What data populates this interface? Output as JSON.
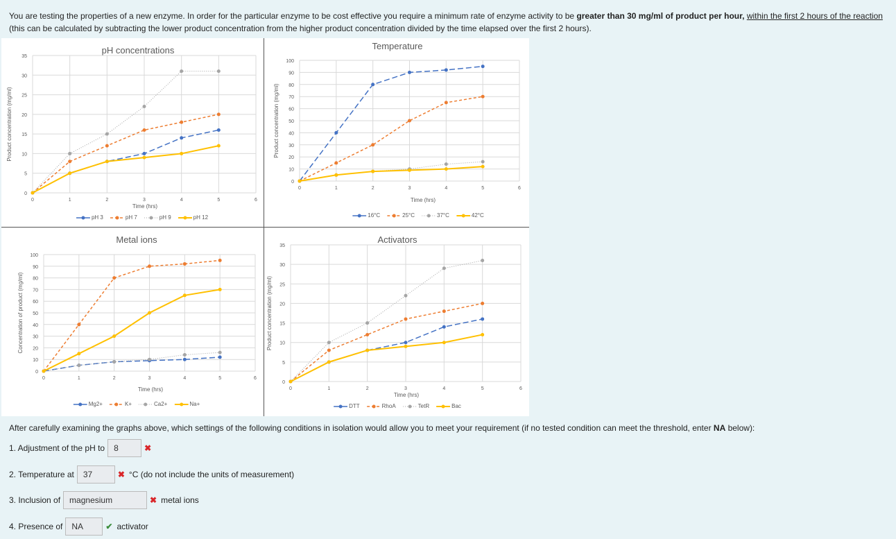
{
  "intro": {
    "part1": "You are testing the properties of a new enzyme.  In order for the particular enzyme to be cost effective you require a minimum rate of enzyme activity to be ",
    "bold": "greater than 30 mg/ml of product per hour,",
    "underlined": "within the first 2 hours of the reaction",
    "part2": "(this can be calculated by subtracting the lower product concentration from the higher product concentration divided by the time elapsed over the first 2 hours)."
  },
  "colors": {
    "blue": "#4472c4",
    "orange": "#ed7d31",
    "gray": "#a5a5a5",
    "yellow": "#ffc000"
  },
  "chart_data": [
    {
      "id": "ph",
      "type": "line",
      "title": "pH concentrations",
      "xlabel": "Time (hrs)",
      "ylabel": "Product concentration (mg/ml)",
      "x": [
        0,
        1,
        2,
        3,
        4,
        5
      ],
      "xlim": [
        0,
        6
      ],
      "ylim": [
        0,
        35
      ],
      "xticks": [
        0,
        1,
        2,
        3,
        4,
        5,
        6
      ],
      "yticks": [
        0,
        5,
        10,
        15,
        20,
        25,
        30,
        35
      ],
      "grid": true,
      "legend": "bottom",
      "series": [
        {
          "name": "pH 3",
          "values": [
            0,
            5,
            8,
            10,
            14,
            16
          ]
        },
        {
          "name": "pH 7",
          "values": [
            0,
            8,
            12,
            16,
            18,
            20
          ]
        },
        {
          "name": "pH 9",
          "values": [
            0,
            10,
            15,
            22,
            31,
            31
          ]
        },
        {
          "name": "pH 12",
          "values": [
            0,
            5,
            8,
            9,
            10,
            12
          ]
        }
      ]
    },
    {
      "id": "temp",
      "type": "line",
      "title": "Temperature",
      "xlabel": "Time (hrs)",
      "ylabel": "Product concentration (mg/ml)",
      "x": [
        0,
        1,
        2,
        3,
        4,
        5
      ],
      "xlim": [
        0,
        6
      ],
      "ylim": [
        0,
        100
      ],
      "xticks": [
        0,
        1,
        2,
        3,
        4,
        5,
        6
      ],
      "yticks": [
        0,
        10,
        20,
        30,
        40,
        50,
        60,
        70,
        80,
        90,
        100
      ],
      "grid": true,
      "legend": "bottom",
      "series": [
        {
          "name": "16°C",
          "values": [
            0,
            40,
            80,
            90,
            92,
            95
          ]
        },
        {
          "name": "25°C",
          "values": [
            0,
            15,
            30,
            50,
            65,
            70
          ]
        },
        {
          "name": "37°C",
          "values": [
            0,
            5,
            8,
            10,
            14,
            16
          ]
        },
        {
          "name": "42°C",
          "values": [
            0,
            5,
            8,
            9,
            10,
            12
          ]
        }
      ]
    },
    {
      "id": "metal",
      "type": "line",
      "title": "Metal ions",
      "xlabel": "Time (hrs)",
      "ylabel": "Concentration of product (mg/ml)",
      "x": [
        0,
        1,
        2,
        3,
        4,
        5
      ],
      "xlim": [
        0,
        6
      ],
      "ylim": [
        0,
        100
      ],
      "xticks": [
        0,
        1,
        2,
        3,
        4,
        5,
        6
      ],
      "yticks": [
        0,
        10,
        20,
        30,
        40,
        50,
        60,
        70,
        80,
        90,
        100
      ],
      "grid": true,
      "legend": "bottom",
      "series": [
        {
          "name": "Mg2+",
          "values": [
            0,
            5,
            8,
            9,
            10,
            12
          ]
        },
        {
          "name": "K+",
          "values": [
            0,
            40,
            80,
            90,
            92,
            95
          ]
        },
        {
          "name": "Ca2+",
          "values": [
            0,
            5,
            8,
            10,
            14,
            16
          ]
        },
        {
          "name": "Na+",
          "values": [
            0,
            15,
            30,
            50,
            65,
            70
          ]
        }
      ]
    },
    {
      "id": "act",
      "type": "line",
      "title": "Activators",
      "xlabel": "Time (hrs)",
      "ylabel": "Product concentration (mg/ml)",
      "x": [
        0,
        1,
        2,
        3,
        4,
        5
      ],
      "xlim": [
        0,
        6
      ],
      "ylim": [
        0,
        35
      ],
      "xticks": [
        0,
        1,
        2,
        3,
        4,
        5,
        6
      ],
      "yticks": [
        0,
        5,
        10,
        15,
        20,
        25,
        30,
        35
      ],
      "grid": true,
      "legend": "bottom",
      "series": [
        {
          "name": "DTT",
          "values": [
            0,
            5,
            8,
            10,
            14,
            16
          ]
        },
        {
          "name": "RhoA",
          "values": [
            0,
            8,
            12,
            16,
            18,
            20
          ]
        },
        {
          "name": "TetR",
          "values": [
            0,
            10,
            15,
            22,
            29,
            31
          ]
        },
        {
          "name": "Bac",
          "values": [
            0,
            5,
            8,
            9,
            10,
            12
          ]
        }
      ]
    }
  ],
  "question": {
    "prompt_start": "After carefully examining the graphs above, which settings of the following conditions in isolation would allow you to meet your requirement (if no tested condition can meet the threshold, enter ",
    "prompt_bold": "NA",
    "prompt_end": " below):",
    "items": [
      {
        "label": "1. Adjustment of the pH to",
        "value": "8",
        "result": "✖",
        "suffix": ""
      },
      {
        "label": "2. Temperature at",
        "value": "37",
        "result": "✖",
        "suffix": "°C (do not include the units of measurement)"
      },
      {
        "label": "3. Inclusion of",
        "value": "magnesium",
        "result": "✖",
        "suffix": "metal ions"
      },
      {
        "label": "4. Presence of",
        "value": "NA",
        "result": "✔",
        "suffix": "activator"
      }
    ]
  }
}
